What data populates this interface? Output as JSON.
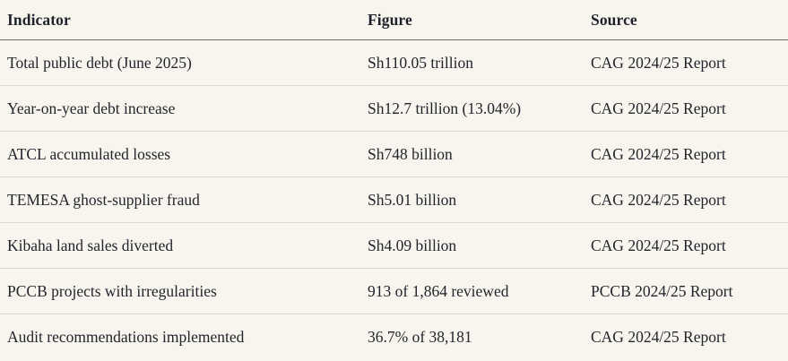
{
  "colors": {
    "background": "#f7f5ee",
    "text": "#23252c",
    "header_divider": "#716f68",
    "row_divider": "#dbd8ce"
  },
  "table": {
    "columns": [
      {
        "label": "Indicator"
      },
      {
        "label": "Figure"
      },
      {
        "label": "Source"
      }
    ],
    "rows": [
      {
        "indicator": "Total public debt (June 2025)",
        "figure": "Sh110.05 trillion",
        "source": "CAG 2024/25 Report"
      },
      {
        "indicator": "Year-on-year debt increase",
        "figure": "Sh12.7 trillion (13.04%)",
        "source": "CAG 2024/25 Report"
      },
      {
        "indicator": "ATCL accumulated losses",
        "figure": "Sh748 billion",
        "source": "CAG 2024/25 Report"
      },
      {
        "indicator": "TEMESA ghost-supplier fraud",
        "figure": "Sh5.01 billion",
        "source": "CAG 2024/25 Report"
      },
      {
        "indicator": "Kibaha land sales diverted",
        "figure": "Sh4.09 billion",
        "source": "CAG 2024/25 Report"
      },
      {
        "indicator": "PCCB projects with irregularities",
        "figure": "913 of 1,864 reviewed",
        "source": "PCCB 2024/25 Report"
      },
      {
        "indicator": "Audit recommendations implemented",
        "figure": "36.7% of 38,181",
        "source": "CAG 2024/25 Report"
      }
    ]
  }
}
